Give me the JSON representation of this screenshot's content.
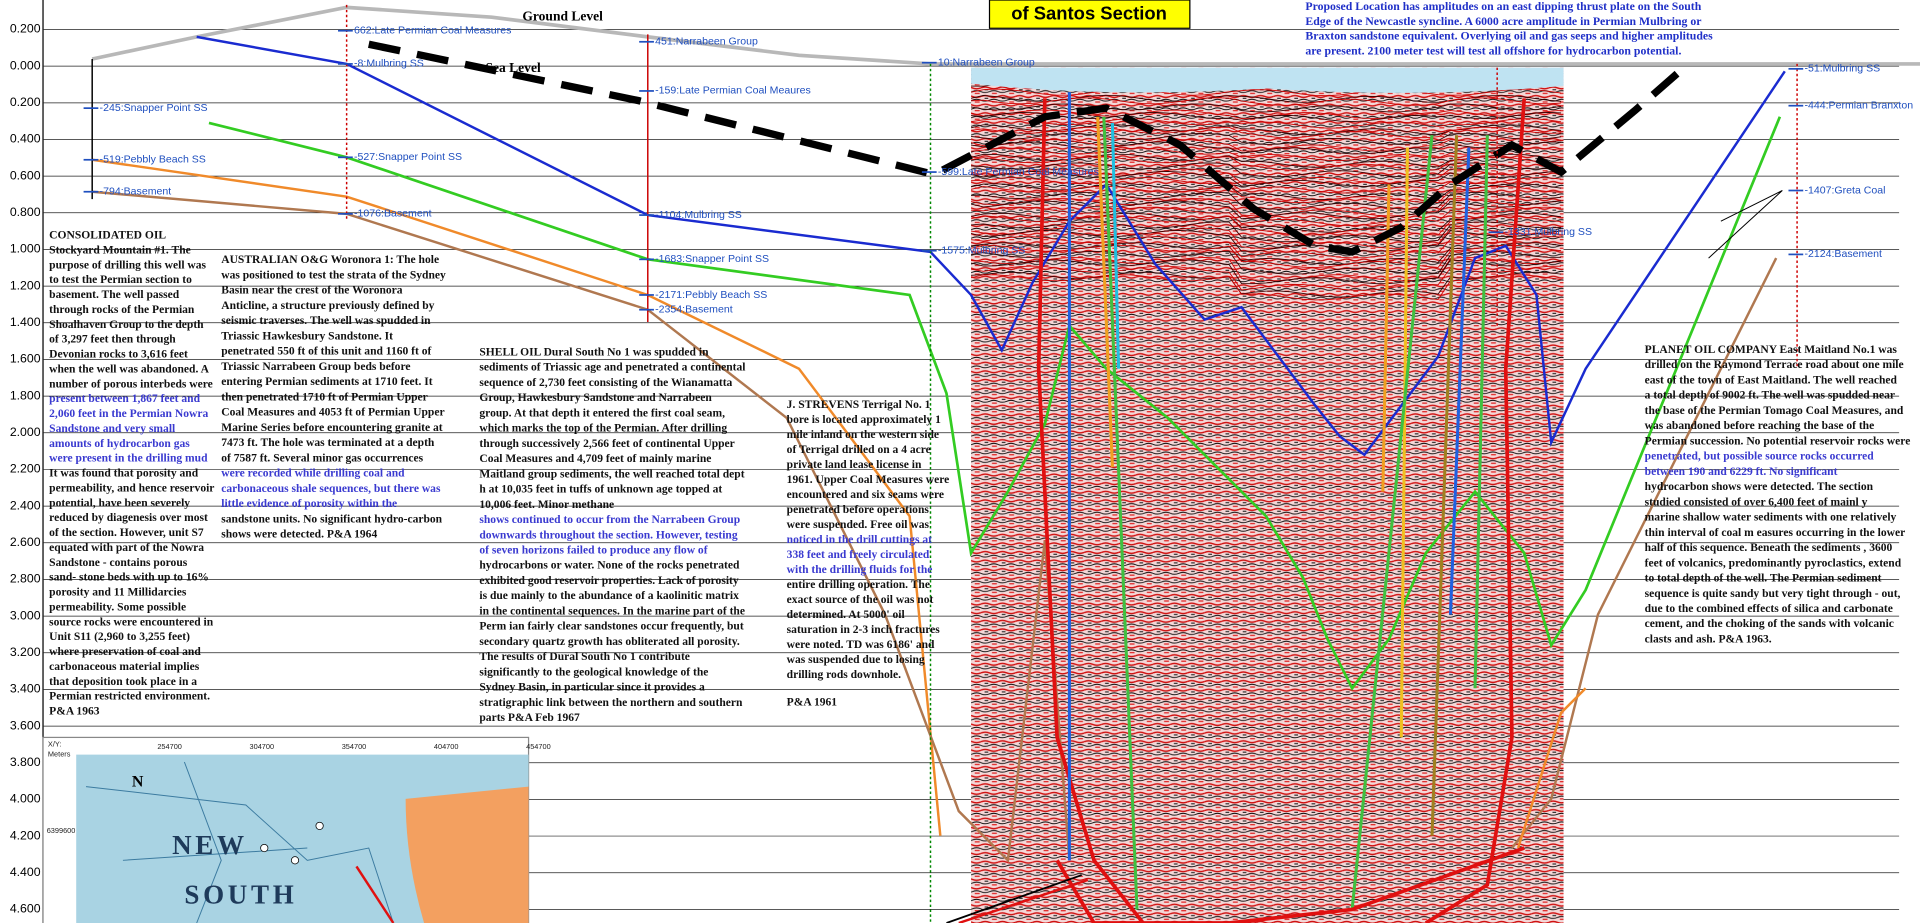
{
  "header": {
    "title": "of Santos Section",
    "ground_level": "Ground Level",
    "sea_level": "Sea Level",
    "proposed_location": [
      "Proposed Location has amplitudes on an east dipping thrust plate on the South",
      "Edge of the Newcastle syncline.  A 6000 acre amplitude in Permian Mulbring or",
      "Braxton sandstone equivalent. Overlying oil and gas seeps and higher amplitudes",
      "are present.  2100 meter test will test all offshore for hydrocarbon potential."
    ]
  },
  "depth_axis": [
    "0.200",
    "0.000",
    "0.200",
    "0.400",
    "0.600",
    "0.800",
    "1.000",
    "1.200",
    "1.400",
    "1.600",
    "1.800",
    "2.000",
    "2.200",
    "2.400",
    "2.600",
    "2.800",
    "3.000",
    "3.200",
    "3.400",
    "3.600",
    "3.800",
    "4.000",
    "4.200",
    "4.400",
    "4.600"
  ],
  "wells": [
    {
      "tops": [
        "-245:Snapper Point SS",
        "-519:Pebbly Beach SS",
        "-794:Basement"
      ]
    },
    {
      "tops": [
        "662:Late Permian Coal Measures",
        "-8:Mulbring SS",
        "-527:Snapper Point SS",
        "-1076:Basement"
      ]
    },
    {
      "tops": [
        "451:Narrabeen Group",
        "-159:Late Permian Coal Meaures",
        "-1104:Mulbring SS",
        "-1683:Snapper Point SS",
        "-2171:Pebbly Beach SS",
        "-2354:Basement"
      ]
    },
    {
      "tops": [
        "10:Narrabeen Group",
        "-599:Late Permian Coal Measures",
        "-1575:Mulbring SS"
      ]
    },
    {
      "tops": [
        "-1331:Mulbring SS"
      ]
    },
    {
      "tops": [
        "-51:Mulbring SS",
        "-444:Permian Branxton",
        "-1407:Greta Coal",
        "-2124:Basement"
      ]
    }
  ],
  "notes": [
    {
      "lines": [
        "CONSOLIDATED OIL",
        "Stockyard Mountain #1. The",
        "purpose of drilling this well was",
        "to test the Permian section to",
        "basement. The well passed",
        "through rocks of the Permian",
        "Shoalhaven Group to the depth",
        "of 3,297 feet then through",
        "Devonian rocks to 3,616 feet",
        "when the well was abandoned. A",
        "number of porous interbeds were",
        "present between 1,867 feet and",
        "2,060 feet in the Permian Nowra",
        "Sandstone and very small",
        "amounts of hydrocarbon gas",
        "were present in the drilling mud",
        "It was found that porosity and",
        "permeability, and hence reservoir",
        "potential, have been severely",
        "reduced by diagenesis over most",
        "of the section. However, unit S7",
        "equated with part of the Nowra",
        "Sandstone - contains porous",
        "sand- stone beds with up to 16%",
        "porosity and 11 Millidarcies",
        "permeability. Some possible",
        "source rocks were encountered in",
        "Unit S11 (2,960 to 3,255 feet)",
        "where preservation of coal and",
        "carbonaceous material implies",
        "that deposition took place in a",
        "Permian restricted environment.",
        "P&A 1963"
      ]
    },
    {
      "lines": [
        "AUSTRALIAN O&G Woronora 1: The hole",
        "was positioned to test the strata of the Sydney",
        "Basin near the crest of the Woronora",
        "Anticline, a structure previously defined by",
        "seismic traverses. The well was spudded in",
        "Triassic Hawkesbury Sandstone. It",
        "penetrated 550 ft of this unit and 1160 ft of",
        "Triassic Narrabeen Group beds before",
        "entering Permian sediments at 1710 feet. It",
        "then penetrated 1710 ft of Permian Upper",
        "Coal Measures and 4053 ft of Permian Upper",
        "Marine Series before encountering granite at",
        "7473 ft. The hole was terminated at a depth",
        "of 7587 ft. Several minor gas occurrences",
        "were recorded while drilling coal and",
        "carbonaceous shale sequences, but there was",
        "little evidence of porosity within the",
        "sandstone units. No significant hydro-carbon",
        "shows were detected. P&A 1964"
      ]
    },
    {
      "lines": [
        "SHELL OIL Dural South No 1 was spudded in",
        "sediments of Triassic age and penetrated a continental",
        "sequence of 2,730 feet consisting of the Wianamatta",
        "Group, Hawkesbury Sandstone and Narrabeen",
        "group. At that depth it entered the first coal seam,",
        "which marks the top of the Permian. After drilling",
        "through successively 2,566 feet of continental Upper",
        "Coal Measures and 4,709 feet of mainly marine",
        "Maitland group sediments, the well reached total dept",
        "h at 10,035 feet in tuffs of unknown age topped at",
        "10,006 feet. Minor methane",
        "shows continued to occur from the Narrabeen Group",
        "downwards throughout the section. However, testing",
        "of seven horizons failed to produce any flow of",
        "hydrocarbons or water. None of the rocks penetrated",
        "exhibited good reservoir properties. Lack of porosity",
        "is due mainly to the abundance of a kaolinitic matrix",
        "in the continental sequences. In the marine part of the",
        "Perm ian fairly clear sandstones occur frequently, but",
        "secondary quartz growth has obliterated all porosity.",
        "The results of Dural South No 1 contribute",
        "significantly to the geological knowledge of the",
        "Sydney Basin, in particular since it provides a",
        "stratigraphic link between the northern and southern",
        "parts  P&A Feb 1967"
      ]
    },
    {
      "lines": [
        "J. STREVENS Terrigal No. 1",
        "bore is located approximately 1",
        "mile inland on the western side",
        "of Terrigal drilled on a 4 acre",
        "private land lease license in",
        "1961. Upper Coal Measures were",
        "encountered and six seams were",
        "penetrated before operations",
        "were suspended. Free oil was",
        "noticed in the drill cuttings at",
        "338 feet and freely circulated",
        "with the drilling fluids for the",
        "entire drilling operation. The",
        "exact source of the oil was not",
        "determined. At 5000' oil",
        "saturation in 2-3 inch fractures",
        "were noted.  TD was 6186' and",
        "was suspended due to losing",
        "drilling rods downhole."
      ],
      "footer": "P&A 1961"
    },
    {
      "lines": [
        "PLANET OIL COMPANY  East Maitland No.1 was",
        "drilled on the Raymond Terrace road about one mile",
        "east of the town of East Maitland. The well reached",
        "a total depth of 9002 ft. The well was spudded near",
        "the base of the Permian Tomago Coal Measures, and",
        "was abandoned before reaching the base of the",
        "Permian succession. No potential reservoir rocks were",
        "penetrated, but possible source rocks occurred",
        "between 190  and 6229 ft. No significant",
        "hydrocarbon shows were detected. The section",
        "studied consisted of over 6,400 feet of mainl y",
        "marine shallow water sediments with one relatively",
        "thin interval of coal m easures occurring in the lower",
        "half of this sequence. Beneath the sediments , 3600",
        "feet of volcanics, predominantly pyroclastics, extend",
        "to total depth of the well.  The Permian sediment",
        "sequence is quite sandy but very tight through - out,",
        "due to the combined effects of silica and carbonate",
        "cement, and the choking of the sands with volcanic",
        "clasts and ash. P&A 1963."
      ]
    }
  ],
  "map": {
    "corner_label": "X/Y:",
    "unit": "Meters",
    "x_labels": [
      "254700",
      "304700",
      "354700",
      "404700",
      "454700"
    ],
    "y_label": "6399600",
    "north": "N",
    "region_labels": [
      "NEW",
      "SOUTH"
    ]
  }
}
